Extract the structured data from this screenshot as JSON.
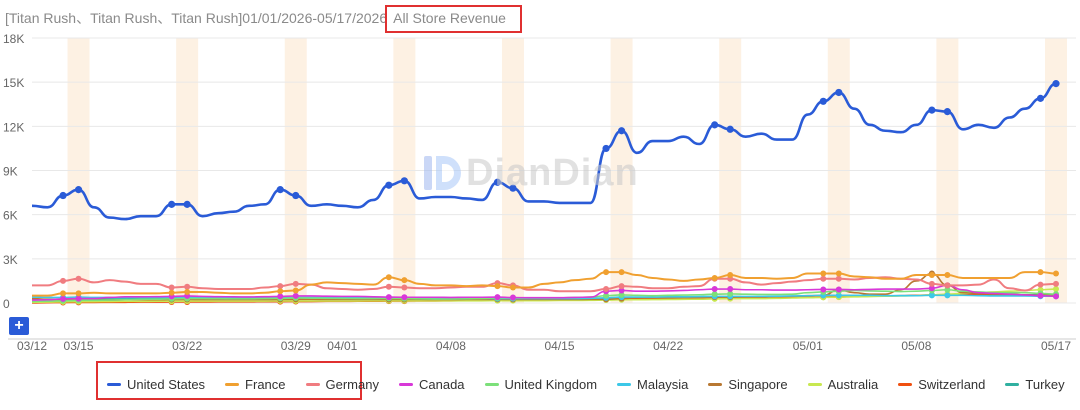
{
  "header": {
    "prefix": "[Titan Rush、Titan Rush、Titan Rush]01/01/2026-05/17/2026",
    "metric": "All Store Revenue"
  },
  "watermark": {
    "text": "DianDian"
  },
  "controls": {
    "plus": "+"
  },
  "chart_data": {
    "type": "line",
    "ylim": [
      0,
      18000
    ],
    "y_ticks": [
      {
        "value": 0,
        "label": "0"
      },
      {
        "value": 3000,
        "label": "3K"
      },
      {
        "value": 6000,
        "label": "6K"
      },
      {
        "value": 9000,
        "label": "9K"
      },
      {
        "value": 12000,
        "label": "12K"
      },
      {
        "value": 15000,
        "label": "15K"
      },
      {
        "value": 18000,
        "label": "18K"
      }
    ],
    "x_ticks": [
      {
        "day": 0,
        "label": "03/12"
      },
      {
        "day": 3,
        "label": "03/15"
      },
      {
        "day": 10,
        "label": "03/22"
      },
      {
        "day": 17,
        "label": "03/29"
      },
      {
        "day": 20,
        "label": "04/01"
      },
      {
        "day": 27,
        "label": "04/08"
      },
      {
        "day": 34,
        "label": "04/15"
      },
      {
        "day": 41,
        "label": "04/22"
      },
      {
        "day": 50,
        "label": "05/01"
      },
      {
        "day": 57,
        "label": "05/08"
      },
      {
        "day": 66,
        "label": "05/17"
      }
    ],
    "x_range": [
      0,
      66
    ],
    "weekend_days": [
      3,
      10,
      17,
      24,
      31,
      38,
      45,
      52,
      59,
      66
    ],
    "grid": true,
    "legend_position": "bottom",
    "series": [
      {
        "name": "United States",
        "color": "#2a5bd7",
        "width": 2.6,
        "values": [
          6600,
          6500,
          7300,
          7700,
          6500,
          5800,
          5700,
          5900,
          5900,
          6700,
          6700,
          5900,
          6100,
          6200,
          6600,
          6700,
          7700,
          7300,
          6600,
          6700,
          6600,
          6500,
          7000,
          8000,
          8300,
          7100,
          7200,
          7200,
          7100,
          7000,
          8200,
          7800,
          6900,
          6900,
          6800,
          6800,
          6800,
          10500,
          11700,
          10200,
          11000,
          11000,
          11300,
          10800,
          12100,
          11800,
          11300,
          11500,
          11100,
          11100,
          12800,
          13700,
          14300,
          13200,
          12100,
          11700,
          11600,
          12100,
          13100,
          13000,
          11800,
          12100,
          11900,
          12600,
          13200,
          13900,
          14900
        ],
        "markers": [
          2,
          3,
          9,
          10,
          16,
          17,
          23,
          24,
          30,
          31,
          37,
          38,
          44,
          45,
          51,
          52,
          58,
          59,
          65,
          66
        ]
      },
      {
        "name": "France",
        "color": "#f0a030",
        "width": 2,
        "values": [
          500,
          500,
          650,
          650,
          700,
          650,
          650,
          650,
          650,
          700,
          750,
          750,
          700,
          650,
          650,
          700,
          800,
          850,
          1250,
          1400,
          1350,
          1300,
          1250,
          1750,
          1550,
          1300,
          1200,
          1200,
          1150,
          1200,
          1150,
          1050,
          1050,
          1300,
          1400,
          1550,
          1650,
          2100,
          2100,
          1900,
          1700,
          1600,
          1500,
          1600,
          1700,
          1900,
          1700,
          1700,
          1650,
          1700,
          2000,
          2000,
          2000,
          1800,
          1750,
          1650,
          1650,
          1900,
          1900,
          1900,
          1700,
          1700,
          1700,
          1700,
          2100,
          2100,
          2000
        ],
        "markers": [
          2,
          3,
          9,
          10,
          16,
          17,
          23,
          24,
          30,
          31,
          37,
          38,
          44,
          45,
          51,
          52,
          58,
          59,
          65,
          66
        ]
      },
      {
        "name": "Germany",
        "color": "#f07c80",
        "width": 2,
        "values": [
          1200,
          1200,
          1500,
          1650,
          1400,
          1550,
          1450,
          1300,
          1300,
          1050,
          1100,
          1000,
          950,
          950,
          950,
          1050,
          1150,
          1300,
          1250,
          1000,
          950,
          900,
          950,
          1100,
          1050,
          1000,
          1000,
          1050,
          1100,
          1100,
          1350,
          1200,
          900,
          900,
          800,
          800,
          800,
          950,
          1150,
          1100,
          1000,
          1000,
          1100,
          1150,
          1650,
          1650,
          1400,
          1250,
          1350,
          1450,
          1550,
          1650,
          1650,
          1600,
          1700,
          1750,
          1650,
          1600,
          1300,
          1200,
          1200,
          1250,
          1600,
          1000,
          850,
          1250,
          1300
        ],
        "markers": [
          2,
          3,
          9,
          10,
          16,
          17,
          23,
          24,
          30,
          31,
          37,
          38,
          44,
          45,
          51,
          52,
          58,
          59,
          65,
          66
        ]
      },
      {
        "name": "Canada",
        "color": "#d838d8",
        "width": 1.6,
        "values": [
          200,
          220,
          280,
          300,
          300,
          380,
          420,
          420,
          430,
          450,
          480,
          450,
          430,
          420,
          410,
          430,
          450,
          480,
          480,
          460,
          450,
          450,
          420,
          400,
          390,
          390,
          390,
          380,
          390,
          390,
          400,
          370,
          360,
          360,
          360,
          380,
          400,
          800,
          850,
          800,
          800,
          820,
          850,
          900,
          950,
          950,
          900,
          900,
          880,
          880,
          900,
          920,
          920,
          900,
          920,
          950,
          950,
          950,
          1000,
          1200,
          900,
          700,
          650,
          600,
          550,
          500,
          450
        ],
        "markers": [
          2,
          3,
          9,
          10,
          16,
          17,
          23,
          24,
          30,
          31,
          37,
          38,
          44,
          45,
          51,
          52,
          58,
          59,
          65,
          66
        ]
      },
      {
        "name": "United Kingdom",
        "color": "#7ce07a",
        "width": 1.6,
        "values": [
          100,
          120,
          150,
          180,
          180,
          200,
          220,
          250,
          260,
          280,
          300,
          300,
          290,
          280,
          280,
          300,
          320,
          340,
          330,
          320,
          310,
          300,
          300,
          310,
          300,
          280,
          270,
          270,
          280,
          300,
          350,
          350,
          340,
          340,
          350,
          380,
          400,
          500,
          550,
          520,
          500,
          520,
          540,
          560,
          600,
          620,
          600,
          580,
          580,
          600,
          700,
          750,
          800,
          850,
          820,
          800,
          780,
          800,
          850,
          900,
          800,
          750,
          700,
          700,
          700,
          650,
          600
        ],
        "markers": [
          2,
          3,
          9,
          10,
          16,
          17,
          23,
          24,
          30,
          31,
          37,
          38,
          44,
          45,
          51,
          52,
          58,
          59,
          65,
          66
        ]
      },
      {
        "name": "Malaysia",
        "color": "#3cc8e8",
        "width": 1.6,
        "values": [
          400,
          380,
          380,
          400,
          380,
          380,
          380,
          380,
          380,
          380,
          400,
          380,
          380,
          380,
          380,
          380,
          380,
          380,
          380,
          380,
          380,
          380,
          380,
          360,
          340,
          340,
          340,
          340,
          340,
          320,
          300,
          300,
          300,
          300,
          300,
          300,
          320,
          350,
          400,
          400,
          400,
          420,
          420,
          440,
          450,
          450,
          450,
          450,
          460,
          480,
          500,
          520,
          520,
          520,
          520,
          500,
          500,
          500,
          520,
          520,
          520,
          500,
          480,
          480,
          480,
          460,
          460
        ],
        "markers": [
          2,
          3,
          9,
          10,
          16,
          17,
          23,
          24,
          30,
          31,
          37,
          38,
          44,
          45,
          51,
          52,
          58,
          59,
          65,
          66
        ]
      },
      {
        "name": "Singapore",
        "color": "#b87832",
        "width": 1.6,
        "values": [
          300,
          250,
          220,
          200,
          200,
          200,
          220,
          220,
          220,
          230,
          240,
          230,
          230,
          230,
          230,
          230,
          240,
          250,
          250,
          240,
          240,
          240,
          240,
          240,
          240,
          240,
          230,
          230,
          240,
          240,
          250,
          240,
          240,
          240,
          240,
          240,
          250,
          250,
          300,
          350,
          350,
          350,
          370,
          380,
          400,
          400,
          420,
          420,
          440,
          460,
          500,
          520,
          900,
          700,
          600,
          600,
          900,
          1500,
          2000,
          1200,
          700,
          650,
          600,
          600,
          550,
          500,
          500
        ],
        "markers": [
          2,
          3,
          9,
          10,
          16,
          17,
          23,
          24,
          30,
          31,
          37,
          38,
          44,
          45,
          51,
          52,
          58,
          59,
          65,
          66
        ]
      },
      {
        "name": "Australia",
        "color": "#c8e850",
        "width": 1.6,
        "values": [
          50,
          60,
          80,
          90,
          90,
          100,
          110,
          110,
          120,
          120,
          130,
          130,
          130,
          130,
          130,
          130,
          140,
          140,
          140,
          140,
          140,
          140,
          150,
          150,
          150,
          150,
          150,
          150,
          150,
          150,
          160,
          160,
          160,
          160,
          170,
          170,
          180,
          200,
          220,
          220,
          230,
          240,
          250,
          260,
          280,
          300,
          300,
          300,
          320,
          340,
          360,
          380,
          400,
          420,
          440,
          460,
          480,
          500,
          550,
          600,
          650,
          700,
          750,
          800,
          850,
          900,
          950
        ],
        "markers": [
          2,
          3,
          9,
          10,
          16,
          17,
          23,
          24,
          30,
          31,
          37,
          38,
          44,
          45,
          51,
          52,
          58,
          59,
          65,
          66
        ]
      },
      {
        "name": "Switzerland",
        "color": "#f05010",
        "width": 1.6,
        "values": [
          0,
          20,
          30,
          40,
          40,
          50,
          50,
          60,
          60,
          70,
          70,
          70,
          80,
          80,
          80,
          90,
          90,
          100,
          100,
          110,
          110,
          120,
          120,
          130,
          130,
          140,
          140,
          150,
          160,
          170,
          180,
          190,
          200,
          210,
          220,
          230,
          240,
          250,
          260,
          270,
          280,
          290,
          300,
          310,
          320,
          330,
          340,
          350,
          360,
          370,
          380,
          400,
          420,
          440,
          460,
          480,
          500,
          520,
          540,
          560,
          580,
          600,
          580,
          560,
          540,
          520,
          500
        ],
        "markers": [
          2,
          3,
          9,
          10,
          16,
          17,
          23,
          24,
          30,
          31,
          37,
          38,
          44,
          45,
          51,
          52,
          58,
          59,
          65,
          66
        ]
      },
      {
        "name": "Turkey",
        "color": "#30b0a0",
        "width": 1.6,
        "values": [
          250,
          250,
          260,
          270,
          270,
          280,
          280,
          290,
          290,
          300,
          300,
          300,
          300,
          300,
          300,
          300,
          310,
          320,
          320,
          310,
          300,
          300,
          300,
          300,
          300,
          300,
          300,
          300,
          300,
          300,
          300,
          300,
          300,
          300,
          300,
          300,
          300,
          300,
          300,
          300,
          300,
          320,
          320,
          320,
          320,
          320,
          330,
          340,
          350,
          360,
          380,
          400,
          420,
          440,
          460,
          480,
          500,
          520,
          540,
          560,
          560,
          560,
          560,
          560,
          560,
          560,
          560
        ],
        "markers": [
          2,
          3,
          9,
          10,
          16,
          17,
          23,
          24,
          30,
          31,
          37,
          38,
          44,
          45,
          51,
          52,
          58,
          59,
          65,
          66
        ]
      }
    ]
  }
}
